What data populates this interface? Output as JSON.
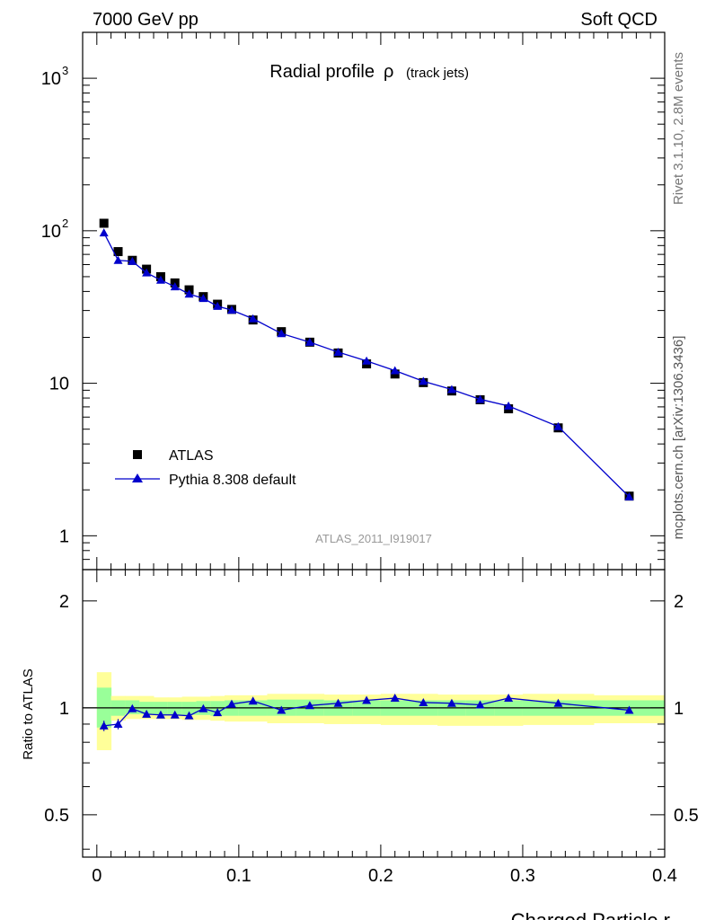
{
  "header": {
    "left": "7000 GeV pp",
    "right": "Soft QCD"
  },
  "side": {
    "rivet": "Rivet 3.1.10,  2.8M events",
    "source": "mcplots.cern.ch [arXiv:1306.3436]"
  },
  "main": {
    "title": "Radial profile",
    "title_symbol": "ρ",
    "title_suffix": "(track jets)",
    "analysis": "ATLAS_2011_I919017",
    "yticks": [
      {
        "value": 1000,
        "base": "10",
        "exp": "3"
      },
      {
        "value": 100,
        "base": "10",
        "exp": "2"
      },
      {
        "value": 10,
        "base": "10",
        "exp": ""
      },
      {
        "value": 1,
        "base": "1",
        "exp": ""
      }
    ]
  },
  "ratio": {
    "ylabel": "Ratio to ATLAS",
    "yticks": [
      "2",
      "1",
      "0.5"
    ]
  },
  "xaxis": {
    "label": "Charged Particle r",
    "ticks": [
      "0",
      "0.1",
      "0.2",
      "0.3",
      "0.4"
    ]
  },
  "legend": {
    "data_label": "ATLAS",
    "mc_label": "Pythia 8.308 default"
  },
  "colors": {
    "mc": "#0000cc",
    "data": "#000000",
    "band_inner": "#99ff99",
    "band_outer": "#ffff99"
  },
  "chart_data": {
    "type": "scatter",
    "title": "Radial profile ρ (track jets)",
    "xlabel": "Charged Particle r",
    "ylabel": "",
    "xlim": [
      -0.01,
      0.4
    ],
    "ylim": [
      0.6,
      2000
    ],
    "yscale": "log",
    "ratio_ylabel": "Ratio to ATLAS",
    "ratio_ylim": [
      0.38,
      2.45
    ],
    "x": [
      0.005,
      0.015,
      0.025,
      0.035,
      0.045,
      0.055,
      0.065,
      0.075,
      0.085,
      0.095,
      0.11,
      0.13,
      0.15,
      0.17,
      0.19,
      0.21,
      0.23,
      0.25,
      0.27,
      0.29,
      0.325,
      0.375
    ],
    "bins": [
      [
        0,
        0.01
      ],
      [
        0.01,
        0.02
      ],
      [
        0.02,
        0.03
      ],
      [
        0.03,
        0.04
      ],
      [
        0.04,
        0.05
      ],
      [
        0.05,
        0.06
      ],
      [
        0.06,
        0.07
      ],
      [
        0.07,
        0.08
      ],
      [
        0.08,
        0.09
      ],
      [
        0.09,
        0.1
      ],
      [
        0.1,
        0.12
      ],
      [
        0.12,
        0.14
      ],
      [
        0.14,
        0.16
      ],
      [
        0.16,
        0.18
      ],
      [
        0.18,
        0.2
      ],
      [
        0.2,
        0.22
      ],
      [
        0.22,
        0.24
      ],
      [
        0.24,
        0.26
      ],
      [
        0.26,
        0.28
      ],
      [
        0.28,
        0.3
      ],
      [
        0.3,
        0.35
      ],
      [
        0.35,
        0.4
      ]
    ],
    "series": [
      {
        "name": "ATLAS",
        "values": [
          112,
          73,
          64,
          56,
          50,
          45.5,
          41,
          37,
          33,
          30.5,
          26,
          21.8,
          18.6,
          15.8,
          13.4,
          11.5,
          10.1,
          8.9,
          7.8,
          6.8,
          5.1,
          1.82
        ]
      },
      {
        "name": "Pythia 8.308 default",
        "values": [
          97,
          64,
          63,
          53,
          47.5,
          43,
          38.5,
          36,
          32,
          30.2,
          26.5,
          21.2,
          18.6,
          16,
          14,
          12.1,
          10.3,
          9.1,
          7.85,
          7.1,
          5.2,
          1.8
        ]
      }
    ],
    "ratio": [
      0.89,
      0.9,
      0.995,
      0.96,
      0.955,
      0.955,
      0.95,
      0.995,
      0.97,
      1.025,
      1.045,
      0.985,
      1.015,
      1.03,
      1.05,
      1.065,
      1.035,
      1.03,
      1.02,
      1.065,
      1.03,
      0.985
    ],
    "ratio_err": [
      0.03,
      0.03,
      0.02,
      0.015,
      0.015,
      0.015,
      0.015,
      0.015,
      0.015,
      0.012,
      0.012,
      0.01,
      0.01,
      0.01,
      0.01,
      0.01,
      0.01,
      0.01,
      0.01,
      0.015,
      0.01,
      0.01
    ],
    "band_inner": [
      [
        0.88,
        1.14
      ],
      [
        0.95,
        1.05
      ],
      [
        0.96,
        1.05
      ],
      [
        0.96,
        1.04
      ],
      [
        0.955,
        1.04
      ],
      [
        0.955,
        1.04
      ],
      [
        0.955,
        1.04
      ],
      [
        0.955,
        1.045
      ],
      [
        0.95,
        1.045
      ],
      [
        0.95,
        1.05
      ],
      [
        0.95,
        1.05
      ],
      [
        0.95,
        1.055
      ],
      [
        0.95,
        1.055
      ],
      [
        0.95,
        1.05
      ],
      [
        0.95,
        1.05
      ],
      [
        0.95,
        1.05
      ],
      [
        0.95,
        1.05
      ],
      [
        0.95,
        1.05
      ],
      [
        0.95,
        1.05
      ],
      [
        0.95,
        1.05
      ],
      [
        0.95,
        1.05
      ],
      [
        0.95,
        1.05
      ]
    ],
    "band_outer": [
      [
        0.76,
        1.26
      ],
      [
        0.92,
        1.08
      ],
      [
        0.93,
        1.08
      ],
      [
        0.93,
        1.08
      ],
      [
        0.93,
        1.07
      ],
      [
        0.93,
        1.07
      ],
      [
        0.925,
        1.075
      ],
      [
        0.925,
        1.075
      ],
      [
        0.92,
        1.08
      ],
      [
        0.915,
        1.085
      ],
      [
        0.915,
        1.085
      ],
      [
        0.905,
        1.095
      ],
      [
        0.905,
        1.095
      ],
      [
        0.9,
        1.09
      ],
      [
        0.9,
        1.09
      ],
      [
        0.895,
        1.095
      ],
      [
        0.895,
        1.095
      ],
      [
        0.89,
        1.09
      ],
      [
        0.89,
        1.09
      ],
      [
        0.89,
        1.09
      ],
      [
        0.895,
        1.095
      ],
      [
        0.905,
        1.085
      ]
    ]
  }
}
